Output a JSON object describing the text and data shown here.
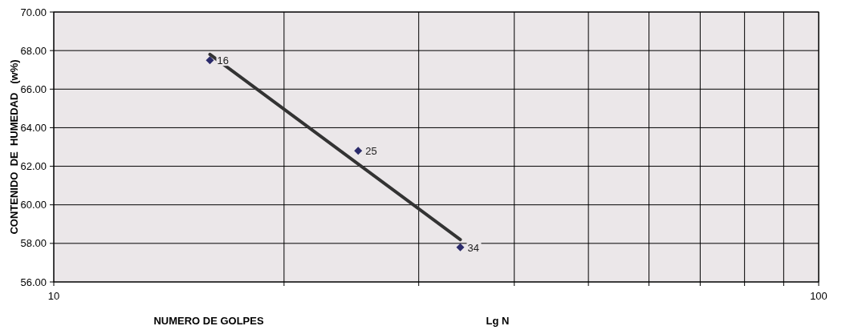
{
  "chart_data": {
    "type": "scatter",
    "xlabel": "NUMERO DE GOLPES",
    "ylabel": "CONTENIDO  DE  HUMEDAD   (w%)",
    "log": "x",
    "grid": true,
    "annotations": [
      "Lg N",
      {
        "text": "16",
        "x": 16,
        "y": 67.5
      },
      {
        "text": "25",
        "x": 25,
        "y": 62.8
      },
      {
        "text": "34",
        "x": 34,
        "y": 57.8
      }
    ],
    "xlim": [
      10,
      100
    ],
    "xticks": [
      10,
      {
        "value": 20,
        "label": null
      },
      {
        "value": 30,
        "label": null
      },
      {
        "value": 40,
        "label": null
      },
      {
        "value": 50,
        "label": null
      },
      {
        "value": 60,
        "label": null
      },
      {
        "value": 70,
        "label": null
      },
      {
        "value": 80,
        "label": null
      },
      {
        "value": 90,
        "label": null
      },
      100
    ],
    "ylim": [
      56,
      70
    ],
    "yticks": [
      {
        "value": 56,
        "label": "56.00"
      },
      {
        "value": 58,
        "label": "58.00"
      },
      {
        "value": 60,
        "label": "60.00"
      },
      {
        "value": 62,
        "label": "62.00"
      },
      {
        "value": 64,
        "label": "64.00"
      },
      {
        "value": 66,
        "label": "66.00"
      },
      {
        "value": 68,
        "label": "68.00"
      },
      {
        "value": 70,
        "label": "70.00"
      }
    ],
    "series": [
      {
        "marker": "diamond",
        "color": "#2b2b6b",
        "x": [
          16,
          25,
          34
        ],
        "values": [
          67.5,
          62.8,
          57.8
        ]
      },
      {
        "type": "line",
        "color": "#333333",
        "x": [
          16,
          34
        ],
        "values": [
          67.8,
          58.2
        ]
      }
    ]
  }
}
